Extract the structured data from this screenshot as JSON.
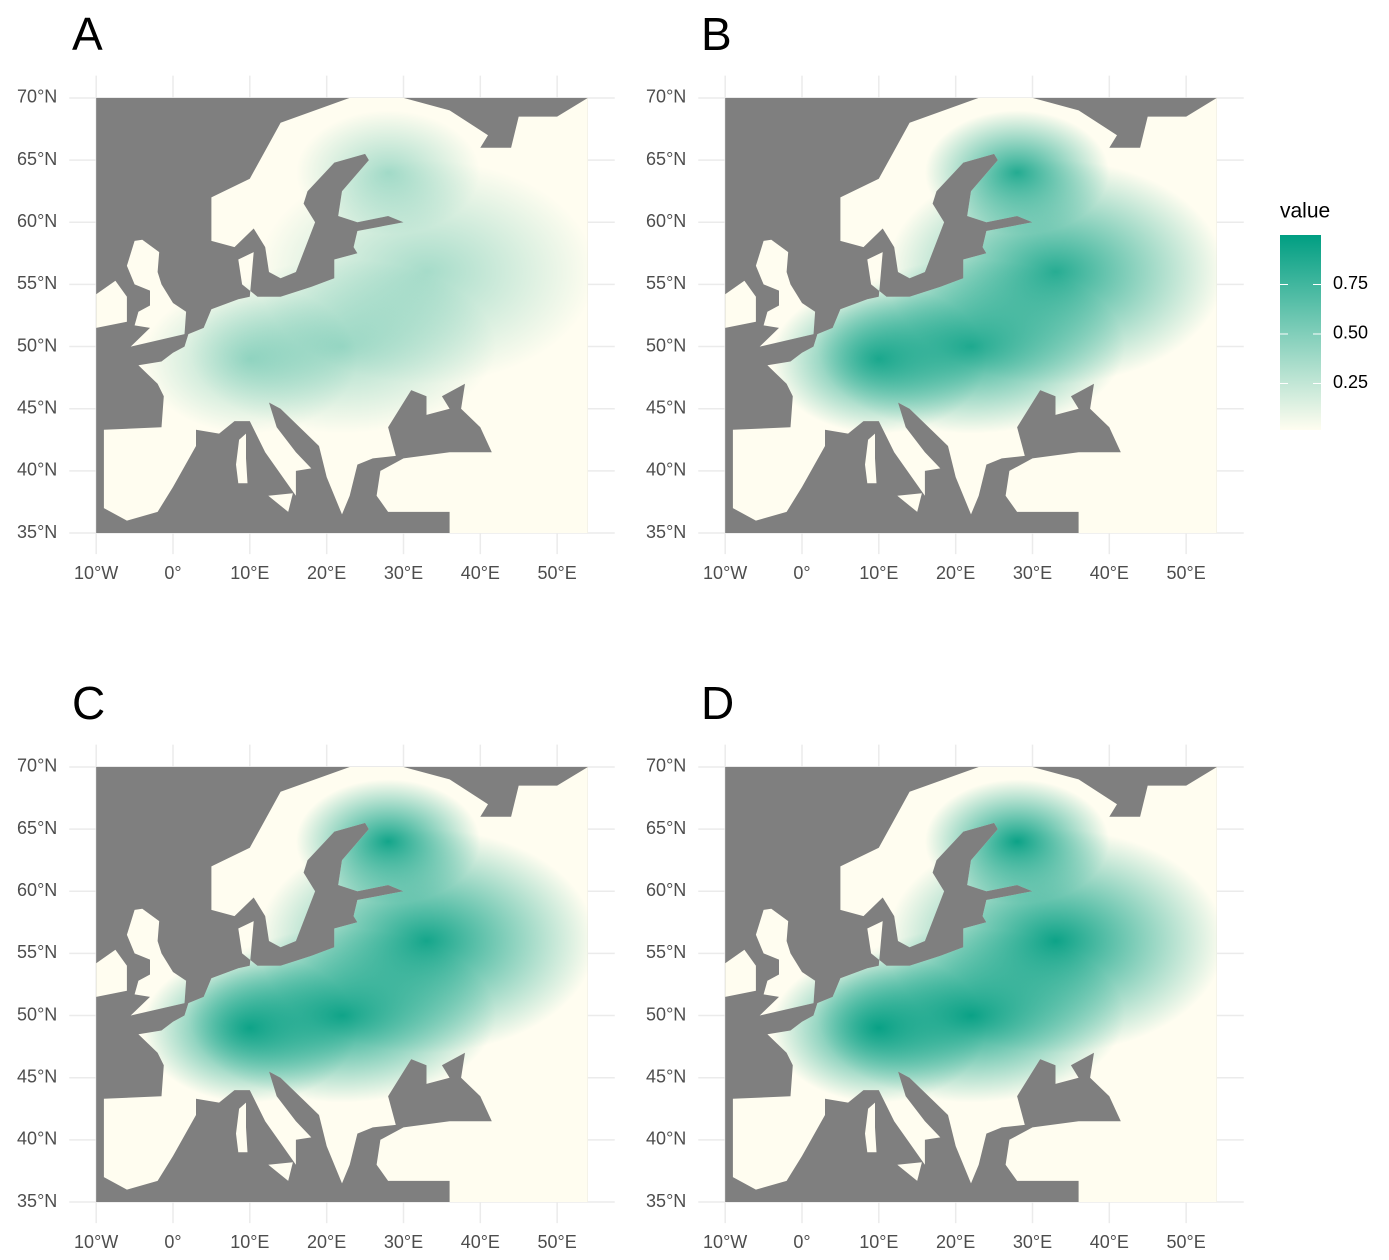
{
  "panels": [
    {
      "label": "A"
    },
    {
      "label": "B"
    },
    {
      "label": "C"
    },
    {
      "label": "D"
    }
  ],
  "xlim": [
    -13.5,
    57.5
  ],
  "ylim": [
    33.3,
    71.8
  ],
  "xticks": [
    {
      "value": -10,
      "label": "10°W"
    },
    {
      "value": 0,
      "label": "0°"
    },
    {
      "value": 10,
      "label": "10°E"
    },
    {
      "value": 20,
      "label": "20°E"
    },
    {
      "value": 30,
      "label": "30°E"
    },
    {
      "value": 40,
      "label": "40°E"
    },
    {
      "value": 50,
      "label": "50°E"
    }
  ],
  "yticks": [
    {
      "value": 35,
      "label": "35°N"
    },
    {
      "value": 40,
      "label": "40°N"
    },
    {
      "value": 45,
      "label": "45°N"
    },
    {
      "value": 50,
      "label": "50°N"
    },
    {
      "value": 55,
      "label": "55°N"
    },
    {
      "value": 60,
      "label": "60°N"
    },
    {
      "value": 65,
      "label": "65°N"
    },
    {
      "value": 70,
      "label": "70°N"
    }
  ],
  "legend": {
    "title": "value",
    "range": [
      0.015,
      1.0
    ],
    "low_color": "#fffdf0",
    "high_color": "#009e82",
    "ticks": [
      {
        "value": 0.25,
        "label": "0.25"
      },
      {
        "value": 0.5,
        "label": "0.50"
      },
      {
        "value": 0.75,
        "label": "0.75"
      }
    ]
  },
  "water_color": "#7f7f7f"
}
